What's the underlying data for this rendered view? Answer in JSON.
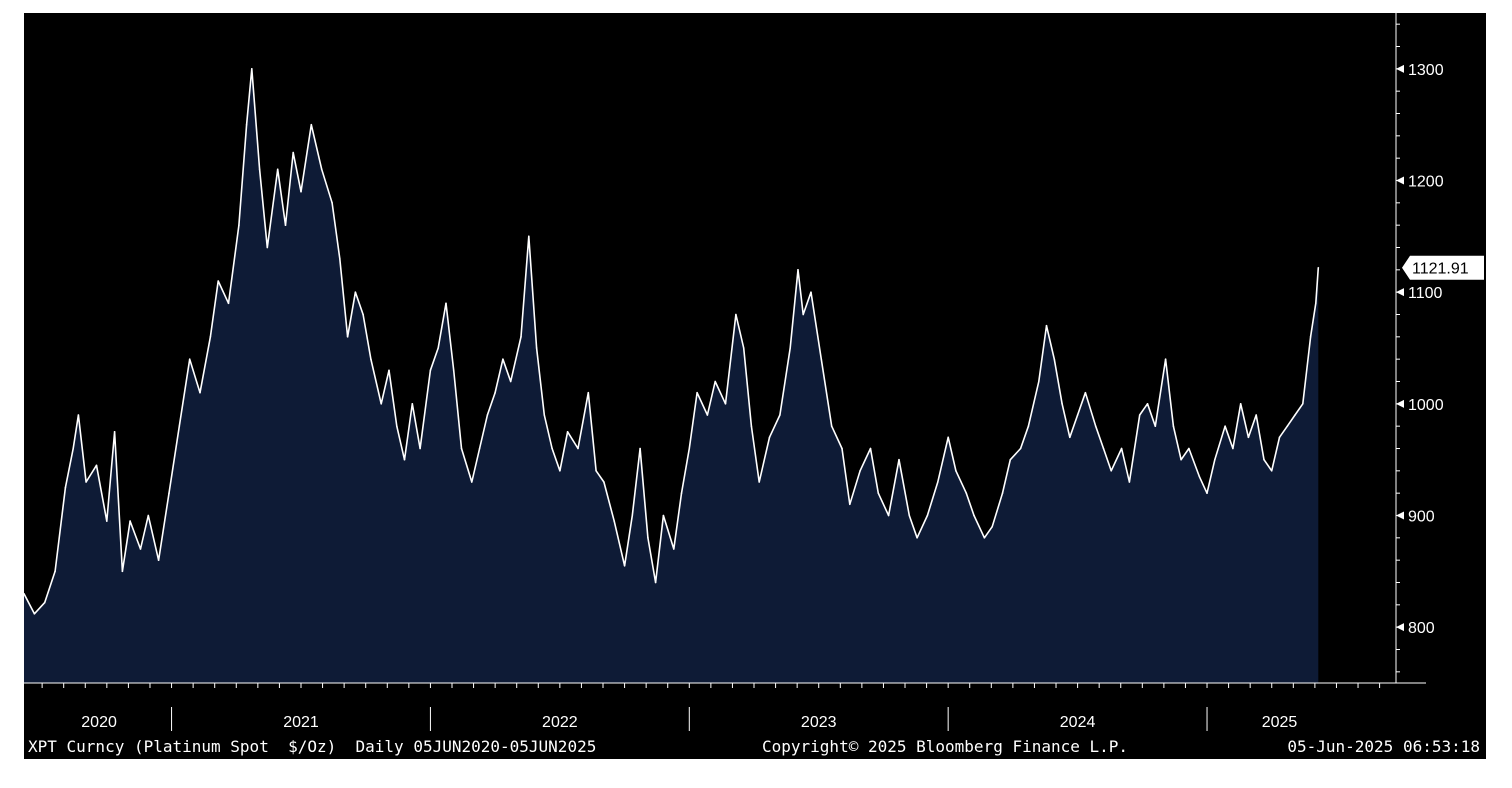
{
  "colors": {
    "background": "#000000",
    "area_fill": "#0e1b36",
    "line": "#ffffff",
    "axis": "#ffffff",
    "last_price_box": "#ffffff",
    "last_price_text": "#000000"
  },
  "footer": {
    "left": "XPT Curncy (Platinum Spot  $/Oz)  Daily 05JUN2020-05JUN2025",
    "center": "Copyright© 2025 Bloomberg Finance L.P.",
    "right": "05-Jun-2025 06:53:18"
  },
  "chart_data": {
    "type": "area",
    "title": "",
    "xlabel": "",
    "ylabel": "",
    "last_value_label": "1121.91",
    "ylim": [
      750,
      1350
    ],
    "xlim": [
      2020.43,
      2025.73
    ],
    "y_ticks": [
      800,
      900,
      1000,
      1100,
      1200,
      1300
    ],
    "y_tick_labels": [
      "800",
      "900",
      "1000",
      "1100",
      "1200",
      "1300"
    ],
    "x_year_labels": [
      {
        "label": "2020",
        "x": 2020.72
      },
      {
        "label": "2021",
        "x": 2021.5
      },
      {
        "label": "2022",
        "x": 2022.5
      },
      {
        "label": "2023",
        "x": 2023.5
      },
      {
        "label": "2024",
        "x": 2024.5
      },
      {
        "label": "2025",
        "x": 2025.28
      }
    ],
    "x_year_separators": [
      2021.0,
      2022.0,
      2023.0,
      2024.0,
      2025.0
    ],
    "grid": false,
    "series": [
      {
        "values": [
          [
            2020.43,
            830
          ],
          [
            2020.47,
            812
          ],
          [
            2020.51,
            822
          ],
          [
            2020.55,
            850
          ],
          [
            2020.59,
            925
          ],
          [
            2020.62,
            960
          ],
          [
            2020.64,
            990
          ],
          [
            2020.67,
            930
          ],
          [
            2020.71,
            945
          ],
          [
            2020.75,
            895
          ],
          [
            2020.78,
            975
          ],
          [
            2020.81,
            850
          ],
          [
            2020.84,
            895
          ],
          [
            2020.88,
            870
          ],
          [
            2020.91,
            900
          ],
          [
            2020.95,
            860
          ],
          [
            2020.99,
            920
          ],
          [
            2021.03,
            980
          ],
          [
            2021.07,
            1040
          ],
          [
            2021.11,
            1010
          ],
          [
            2021.15,
            1060
          ],
          [
            2021.18,
            1110
          ],
          [
            2021.22,
            1090
          ],
          [
            2021.26,
            1160
          ],
          [
            2021.29,
            1250
          ],
          [
            2021.31,
            1300
          ],
          [
            2021.34,
            1210
          ],
          [
            2021.37,
            1140
          ],
          [
            2021.41,
            1210
          ],
          [
            2021.44,
            1160
          ],
          [
            2021.47,
            1225
          ],
          [
            2021.5,
            1190
          ],
          [
            2021.54,
            1250
          ],
          [
            2021.58,
            1210
          ],
          [
            2021.62,
            1180
          ],
          [
            2021.65,
            1130
          ],
          [
            2021.68,
            1060
          ],
          [
            2021.71,
            1100
          ],
          [
            2021.74,
            1080
          ],
          [
            2021.77,
            1040
          ],
          [
            2021.81,
            1000
          ],
          [
            2021.84,
            1030
          ],
          [
            2021.87,
            980
          ],
          [
            2021.9,
            950
          ],
          [
            2021.93,
            1000
          ],
          [
            2021.96,
            960
          ],
          [
            2022.0,
            1030
          ],
          [
            2022.03,
            1050
          ],
          [
            2022.06,
            1090
          ],
          [
            2022.09,
            1030
          ],
          [
            2022.12,
            960
          ],
          [
            2022.16,
            930
          ],
          [
            2022.19,
            960
          ],
          [
            2022.22,
            990
          ],
          [
            2022.25,
            1010
          ],
          [
            2022.28,
            1040
          ],
          [
            2022.31,
            1020
          ],
          [
            2022.35,
            1060
          ],
          [
            2022.38,
            1150
          ],
          [
            2022.41,
            1050
          ],
          [
            2022.44,
            990
          ],
          [
            2022.47,
            960
          ],
          [
            2022.5,
            940
          ],
          [
            2022.53,
            975
          ],
          [
            2022.57,
            960
          ],
          [
            2022.61,
            1010
          ],
          [
            2022.64,
            940
          ],
          [
            2022.67,
            930
          ],
          [
            2022.71,
            895
          ],
          [
            2022.75,
            855
          ],
          [
            2022.78,
            900
          ],
          [
            2022.81,
            960
          ],
          [
            2022.84,
            880
          ],
          [
            2022.87,
            840
          ],
          [
            2022.9,
            900
          ],
          [
            2022.94,
            870
          ],
          [
            2022.97,
            920
          ],
          [
            2023.0,
            960
          ],
          [
            2023.03,
            1010
          ],
          [
            2023.07,
            990
          ],
          [
            2023.1,
            1020
          ],
          [
            2023.14,
            1000
          ],
          [
            2023.18,
            1080
          ],
          [
            2023.21,
            1050
          ],
          [
            2023.24,
            980
          ],
          [
            2023.27,
            930
          ],
          [
            2023.31,
            970
          ],
          [
            2023.35,
            990
          ],
          [
            2023.39,
            1050
          ],
          [
            2023.42,
            1120
          ],
          [
            2023.44,
            1080
          ],
          [
            2023.47,
            1100
          ],
          [
            2023.51,
            1040
          ],
          [
            2023.55,
            980
          ],
          [
            2023.59,
            960
          ],
          [
            2023.62,
            910
          ],
          [
            2023.66,
            940
          ],
          [
            2023.7,
            960
          ],
          [
            2023.73,
            920
          ],
          [
            2023.77,
            900
          ],
          [
            2023.81,
            950
          ],
          [
            2023.85,
            900
          ],
          [
            2023.88,
            880
          ],
          [
            2023.92,
            900
          ],
          [
            2023.96,
            930
          ],
          [
            2024.0,
            970
          ],
          [
            2024.03,
            940
          ],
          [
            2024.07,
            920
          ],
          [
            2024.1,
            900
          ],
          [
            2024.14,
            880
          ],
          [
            2024.17,
            890
          ],
          [
            2024.21,
            920
          ],
          [
            2024.24,
            950
          ],
          [
            2024.28,
            960
          ],
          [
            2024.31,
            980
          ],
          [
            2024.35,
            1020
          ],
          [
            2024.38,
            1070
          ],
          [
            2024.41,
            1040
          ],
          [
            2024.44,
            1000
          ],
          [
            2024.47,
            970
          ],
          [
            2024.5,
            990
          ],
          [
            2024.53,
            1010
          ],
          [
            2024.57,
            980
          ],
          [
            2024.6,
            960
          ],
          [
            2024.63,
            940
          ],
          [
            2024.67,
            960
          ],
          [
            2024.7,
            930
          ],
          [
            2024.74,
            990
          ],
          [
            2024.77,
            1000
          ],
          [
            2024.8,
            980
          ],
          [
            2024.84,
            1040
          ],
          [
            2024.87,
            980
          ],
          [
            2024.9,
            950
          ],
          [
            2024.93,
            960
          ],
          [
            2024.97,
            935
          ],
          [
            2025.0,
            920
          ],
          [
            2025.03,
            950
          ],
          [
            2025.07,
            980
          ],
          [
            2025.1,
            960
          ],
          [
            2025.13,
            1000
          ],
          [
            2025.16,
            970
          ],
          [
            2025.19,
            990
          ],
          [
            2025.22,
            950
          ],
          [
            2025.25,
            940
          ],
          [
            2025.28,
            970
          ],
          [
            2025.31,
            980
          ],
          [
            2025.34,
            990
          ],
          [
            2025.37,
            1000
          ],
          [
            2025.4,
            1060
          ],
          [
            2025.42,
            1090
          ],
          [
            2025.43,
            1121.91
          ]
        ]
      }
    ]
  }
}
